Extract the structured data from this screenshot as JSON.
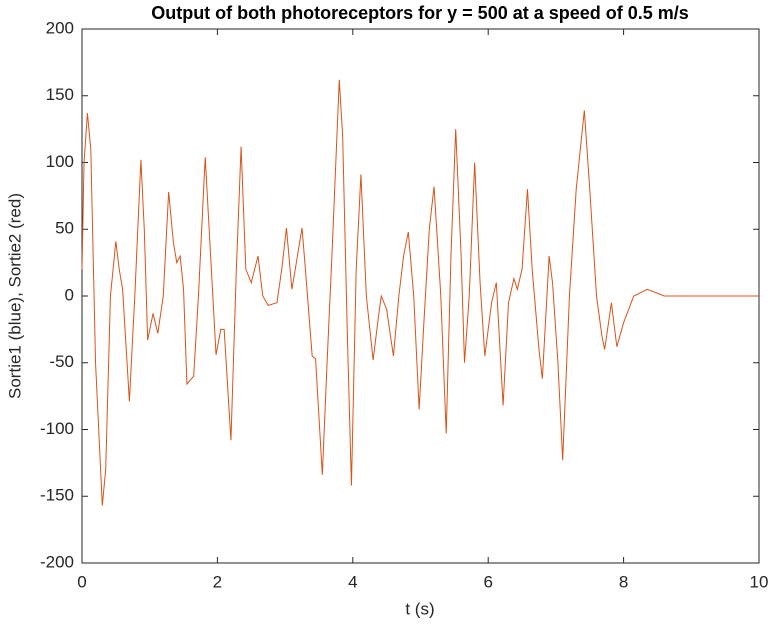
{
  "chart_data": {
    "type": "line",
    "title": "Output of both photoreceptors for y = 500 at a speed of 0.5 m/s",
    "x_label": "t (s)",
    "y_label": "Sortie1 (blue), Sortie2 (red)",
    "xlim": [
      0,
      10
    ],
    "xticks": [
      0,
      2,
      4,
      6,
      8,
      10
    ],
    "ylim": [
      -200,
      200
    ],
    "yticks": [
      -200,
      -150,
      -100,
      -50,
      0,
      50,
      100,
      150,
      200
    ],
    "grid": false,
    "x": [
      0,
      0.03,
      0.08,
      0.13,
      0.2,
      0.3,
      0.35,
      0.42,
      0.5,
      0.55,
      0.6,
      0.7,
      0.78,
      0.87,
      0.92,
      0.97,
      1.05,
      1.12,
      1.2,
      1.28,
      1.35,
      1.4,
      1.45,
      1.5,
      1.55,
      1.65,
      1.72,
      1.82,
      1.9,
      1.98,
      2.05,
      2.1,
      2.2,
      2.28,
      2.35,
      2.42,
      2.5,
      2.6,
      2.67,
      2.75,
      2.88,
      2.95,
      3.02,
      3.1,
      3.15,
      3.25,
      3.3,
      3.4,
      3.45,
      3.55,
      3.62,
      3.7,
      3.8,
      3.85,
      3.92,
      3.98,
      4.05,
      4.12,
      4.2,
      4.3,
      4.38,
      4.42,
      4.5,
      4.6,
      4.68,
      4.75,
      4.82,
      4.9,
      4.98,
      5.05,
      5.13,
      5.2,
      5.3,
      5.38,
      5.45,
      5.52,
      5.6,
      5.65,
      5.72,
      5.8,
      5.88,
      5.95,
      6.05,
      6.12,
      6.22,
      6.3,
      6.38,
      6.43,
      6.5,
      6.58,
      6.65,
      6.75,
      6.8,
      6.9,
      6.95,
      7.03,
      7.1,
      7.2,
      7.3,
      7.42,
      7.5,
      7.6,
      7.68,
      7.72,
      7.82,
      7.9,
      8.0,
      8.15,
      8.35,
      8.6,
      9,
      10
    ],
    "series": [
      {
        "color": "#d95319",
        "values": [
          20,
          100,
          137,
          110,
          -50,
          -157,
          -130,
          0,
          41,
          20,
          5,
          -79,
          0,
          102,
          50,
          -33,
          -13,
          -28,
          0,
          78,
          40,
          25,
          30,
          5,
          -66,
          -60,
          0,
          104,
          30,
          -44,
          -25,
          -25,
          -108,
          20,
          112,
          20,
          10,
          30,
          0,
          -7,
          -5,
          20,
          51,
          5,
          20,
          51,
          20,
          -45,
          -47,
          -134,
          -50,
          40,
          162,
          120,
          -30,
          -142,
          20,
          91,
          0,
          -48,
          -15,
          0,
          -10,
          -45,
          0,
          30,
          48,
          0,
          -85,
          -20,
          50,
          82,
          0,
          -103,
          30,
          125,
          30,
          -50,
          0,
          100,
          10,
          -45,
          -5,
          10,
          -82,
          -5,
          13,
          5,
          20,
          80,
          20,
          -40,
          -62,
          30,
          10,
          -50,
          -123,
          0,
          80,
          139,
          80,
          0,
          -30,
          -40,
          -5,
          -38,
          -20,
          0,
          5,
          0,
          0,
          0
        ]
      }
    ]
  }
}
